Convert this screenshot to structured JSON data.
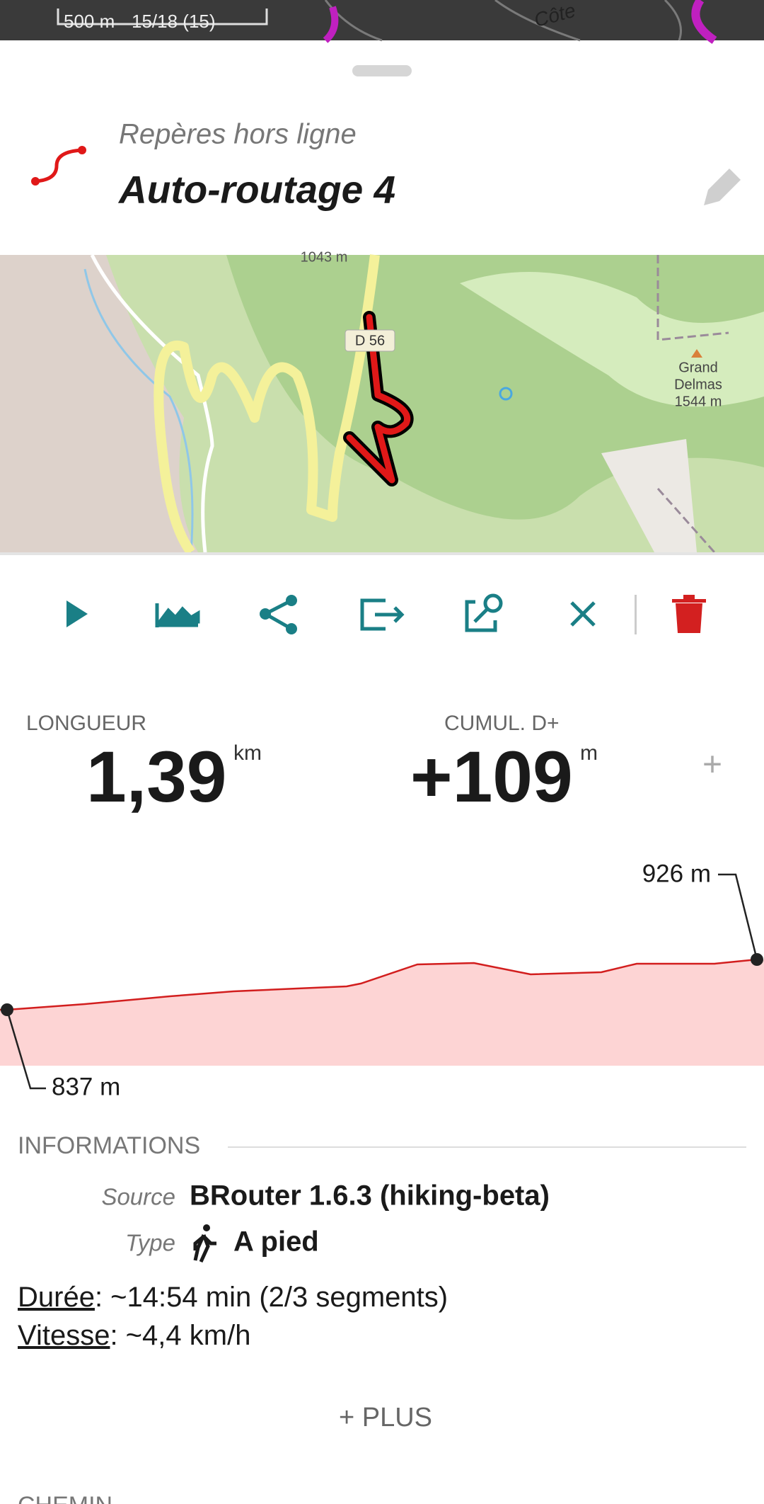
{
  "map_overlay": {
    "scale": "500 m",
    "zoom": "15/18 (15)",
    "place": "Côte"
  },
  "header": {
    "subtitle": "Repères hors ligne",
    "title": "Auto-routage 4"
  },
  "map": {
    "labels": [
      "1043 m",
      "D 56",
      "Grand",
      "Delmas",
      "1544 m"
    ]
  },
  "stats": [
    {
      "label": "LONGUEUR",
      "value": "1,39",
      "unit": "km"
    },
    {
      "label": "CUMUL. D+",
      "value": "+109",
      "unit": "m"
    }
  ],
  "add": "+",
  "profile": {
    "max_label": "926 m",
    "min_label": "837 m"
  },
  "info": {
    "heading": "INFORMATIONS",
    "rows": [
      {
        "key": "Source",
        "value": "BRouter 1.6.3 (hiking-beta)"
      },
      {
        "key": "Type",
        "value": "A pied"
      }
    ],
    "duration": {
      "key": "Durée",
      "value": ": ~14:54 min (2/3 segments)"
    },
    "speed": {
      "key": "Vitesse",
      "value": ": ~4,4 km/h"
    }
  },
  "more": "+ PLUS",
  "next_section": "CHEMIN"
}
